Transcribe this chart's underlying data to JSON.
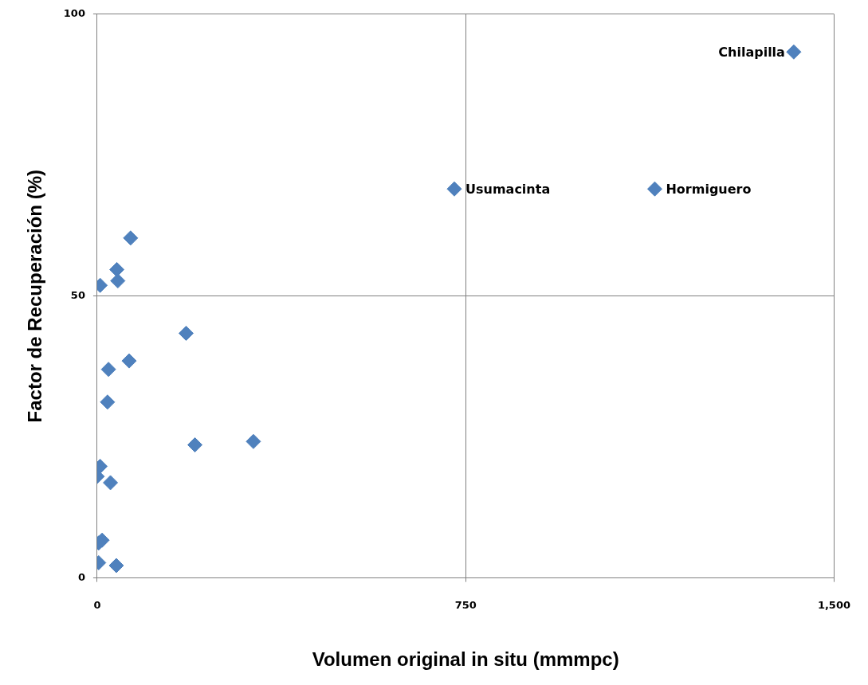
{
  "chart_data": {
    "type": "scatter",
    "xlabel": "Volumen original in situ (mmmpc)",
    "ylabel": "Factor de Recuperación (%)",
    "x": [
      1418,
      727,
      1135,
      68,
      40,
      42,
      6,
      181,
      65,
      23,
      21,
      199,
      318,
      6,
      0,
      27,
      10,
      3,
      3,
      39
    ],
    "series": [
      {
        "color": "#4f81bd",
        "values": [
          93.3,
          69.0,
          69.0,
          60.3,
          54.7,
          52.7,
          51.9,
          43.4,
          38.5,
          37.0,
          31.2,
          23.6,
          24.2,
          19.8,
          18.0,
          16.9,
          6.7,
          6.2,
          2.7,
          2.2
        ]
      }
    ],
    "xlim": [
      0,
      1500
    ],
    "xticks": [
      0,
      750,
      {
        "value": 1500,
        "label": "1,500"
      }
    ],
    "ylim": [
      0,
      100
    ],
    "yticks": [
      0,
      50,
      100
    ],
    "grid": true,
    "legend": false,
    "marker": "diamond",
    "annotations": [
      {
        "text": "Chilapilla",
        "x": 1418,
        "y": 93.3
      },
      {
        "text": "Usumacinta",
        "x": 727,
        "y": 69.0
      },
      {
        "text": "Hormiguero",
        "x": 1135,
        "y": 69.0
      }
    ]
  }
}
